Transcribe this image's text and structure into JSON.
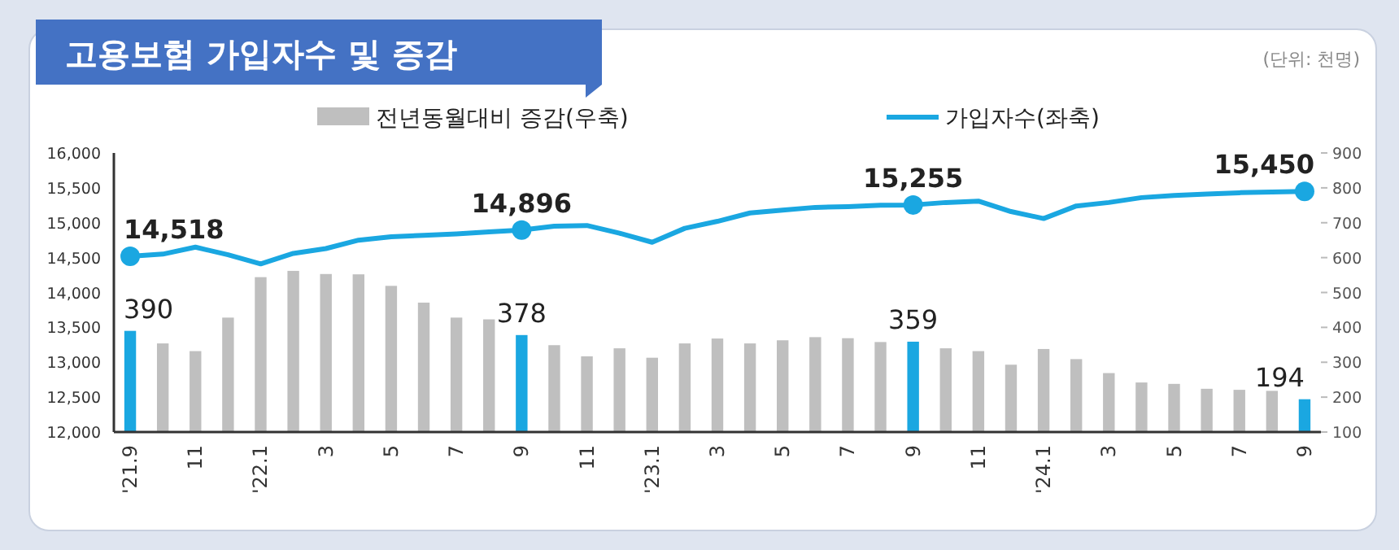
{
  "chart_data": {
    "type": "bar",
    "title": "고용보험 가입자수 및 증감",
    "annotations": [
      "(단위: 천명)"
    ],
    "categories": [
      "'21.9",
      null,
      "11",
      null,
      "'22.1",
      null,
      "3",
      null,
      "5",
      null,
      "7",
      null,
      "9",
      null,
      "11",
      null,
      "'23.1",
      null,
      "3",
      null,
      "5",
      null,
      "7",
      null,
      "9",
      null,
      "11",
      null,
      "'24.1",
      null,
      "3",
      null,
      "5",
      null,
      "7",
      null,
      "9"
    ],
    "series": [
      {
        "name": "전년동월대비 증감(우축)",
        "axis": "y2",
        "color": "#bfbfbf",
        "colors": [
          "#1aa7e1",
          "#bfbfbf",
          "#bfbfbf",
          "#bfbfbf",
          "#bfbfbf",
          "#bfbfbf",
          "#bfbfbf",
          "#bfbfbf",
          "#bfbfbf",
          "#bfbfbf",
          "#bfbfbf",
          "#bfbfbf",
          "#1aa7e1",
          "#bfbfbf",
          "#bfbfbf",
          "#bfbfbf",
          "#bfbfbf",
          "#bfbfbf",
          "#bfbfbf",
          "#bfbfbf",
          "#bfbfbf",
          "#bfbfbf",
          "#bfbfbf",
          "#bfbfbf",
          "#1aa7e1",
          "#bfbfbf",
          "#bfbfbf",
          "#bfbfbf",
          "#bfbfbf",
          "#bfbfbf",
          "#bfbfbf",
          "#bfbfbf",
          "#bfbfbf",
          "#bfbfbf",
          "#bfbfbf",
          "#bfbfbf",
          "#1aa7e1"
        ],
        "values": [
          390,
          354,
          332,
          428,
          544,
          562,
          553,
          552,
          519,
          471,
          428,
          423,
          378,
          349,
          317,
          340,
          313,
          354,
          368,
          354,
          363,
          372,
          369,
          358,
          359,
          340,
          332,
          293,
          338,
          309,
          269,
          242,
          238,
          224,
          221,
          218,
          194
        ],
        "value_labels": [
          "390",
          null,
          null,
          null,
          null,
          null,
          null,
          null,
          null,
          null,
          null,
          null,
          "378",
          null,
          null,
          null,
          null,
          null,
          null,
          null,
          null,
          null,
          null,
          null,
          "359",
          null,
          null,
          null,
          null,
          null,
          null,
          null,
          null,
          null,
          null,
          null,
          "194"
        ]
      },
      {
        "type": "line",
        "name": "가입자수(좌축)",
        "color": "#1aa7e1",
        "values": [
          14518,
          14550,
          14650,
          14540,
          14410,
          14560,
          14630,
          14750,
          14800,
          14820,
          14840,
          14870,
          14896,
          14950,
          14960,
          14850,
          14720,
          14920,
          15020,
          15140,
          15180,
          15220,
          15230,
          15250,
          15255,
          15290,
          15310,
          15160,
          15060,
          15240,
          15290,
          15360,
          15390,
          15410,
          15430,
          15440,
          15450
        ],
        "value_labels": [
          "14,518",
          null,
          null,
          null,
          null,
          null,
          null,
          null,
          null,
          null,
          null,
          null,
          "14,896",
          null,
          null,
          null,
          null,
          null,
          null,
          null,
          null,
          null,
          null,
          null,
          "15,255",
          null,
          null,
          null,
          null,
          null,
          null,
          null,
          null,
          null,
          null,
          null,
          "15,450"
        ]
      }
    ],
    "ylim": [
      12000,
      16000
    ],
    "yticks": [
      {
        "value": 12000,
        "label": "12,000"
      },
      {
        "value": 12500,
        "label": "12,500"
      },
      {
        "value": 13000,
        "label": "13,000"
      },
      {
        "value": 13500,
        "label": "13,500"
      },
      {
        "value": 14000,
        "label": "14,000"
      },
      {
        "value": 14500,
        "label": "14,500"
      },
      {
        "value": 15000,
        "label": "15,000"
      },
      {
        "value": 15500,
        "label": "15,500"
      },
      {
        "value": 16000,
        "label": "16,000"
      }
    ],
    "y2lim": [
      100,
      900
    ],
    "y2ticks": [
      100,
      200,
      300,
      400,
      500,
      600,
      700,
      800,
      900
    ],
    "legend": "top",
    "grid": false
  }
}
